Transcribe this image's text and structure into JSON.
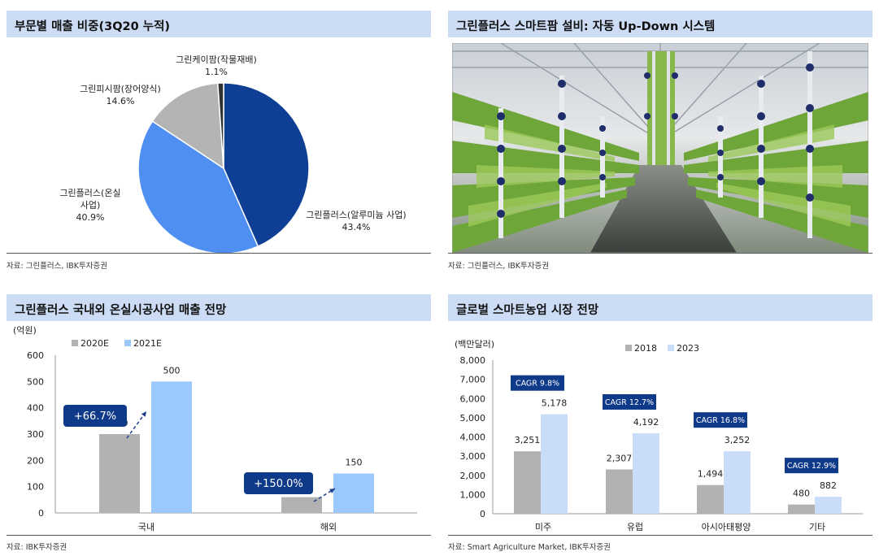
{
  "panels": {
    "pie": {
      "title": "부문별 매출 비중(3Q20 누적)",
      "source": "자료: 그린플러스, IBK투자증권"
    },
    "photo": {
      "title": "그린플러스 스마트팜 설비: 자동 Up-Down 시스템",
      "source": "자료: 그린플러스, IBK투자증권",
      "image_icon": "vertical-farm-photo"
    },
    "domestic": {
      "title": "그린플러스 국내외 온실시공사업 매출 전망",
      "source": "자료: IBK투자증권",
      "growth_labels": [
        "+66.7%",
        "+150.0%"
      ]
    },
    "global": {
      "title": "글로벌 스마트농업 시장 전망",
      "source": "자료: Smart Agriculture Market, IBK투자증권",
      "cagr_labels": [
        "CAGR 9.8%",
        "CAGR 12.7%",
        "CAGR 16.8%",
        "CAGR 12.9%"
      ]
    }
  },
  "colors": {
    "title_bg": "#cddcf5",
    "pie_aluminum": "#0e3f94",
    "pie_greenhouse": "#4f8ff2",
    "pie_eel": "#b4b4b4",
    "pie_crop": "#333333",
    "bar_gray": "#b2b2b2",
    "bar_blue_light": "#9cc9fb",
    "bar_blue_pale": "#c9dcfa",
    "badge_navy": "#0f3a8a"
  },
  "chart_data": [
    {
      "type": "pie",
      "slices": [
        {
          "label": "그린플러스(알루미늄 사업)",
          "label_lines": [
            "그린플러스(알루미늄 사업)"
          ],
          "value": 43.4,
          "value_label": "43.4%"
        },
        {
          "label": "그린플러스(온실사업)",
          "label_lines": [
            "그린플러스(온실",
            "사업)"
          ],
          "value": 40.9,
          "value_label": "40.9%"
        },
        {
          "label": "그린피시팜(장어양식)",
          "label_lines": [
            "그린피시팜(장어양식)"
          ],
          "value": 14.6,
          "value_label": "14.6%"
        },
        {
          "label": "그린케이팜(작물재배)",
          "label_lines": [
            "그린케이팜(작물재배)"
          ],
          "value": 1.1,
          "value_label": "1.1%"
        }
      ]
    },
    {
      "type": "bar",
      "categories": [
        "국내",
        "해외"
      ],
      "series": [
        {
          "name": "2020E",
          "values": [
            300,
            60
          ]
        },
        {
          "name": "2021E",
          "values": [
            500,
            150
          ]
        }
      ],
      "ylabel": "(억원)",
      "ylim": [
        0,
        600
      ],
      "yticks": [
        0,
        100,
        200,
        300,
        400,
        500,
        600
      ],
      "legend": "top-left",
      "grid": false
    },
    {
      "type": "bar",
      "categories": [
        "미주",
        "유럽",
        "아시아태평양",
        "기타"
      ],
      "series": [
        {
          "name": "2018",
          "values": [
            3251,
            2307,
            1494,
            480
          ],
          "value_labels": [
            "3,251",
            "2,307",
            "1,494",
            "480"
          ]
        },
        {
          "name": "2023",
          "values": [
            5178,
            4192,
            3252,
            882
          ],
          "value_labels": [
            "5,178",
            "4,192",
            "3,252",
            "882"
          ]
        }
      ],
      "ylabel": "(백만달러)",
      "ylim": [
        0,
        8000
      ],
      "yticks": [
        "0",
        "1,000",
        "2,000",
        "3,000",
        "4,000",
        "5,000",
        "6,000",
        "7,000",
        "8,000"
      ],
      "legend": "top-center",
      "grid": false
    }
  ]
}
